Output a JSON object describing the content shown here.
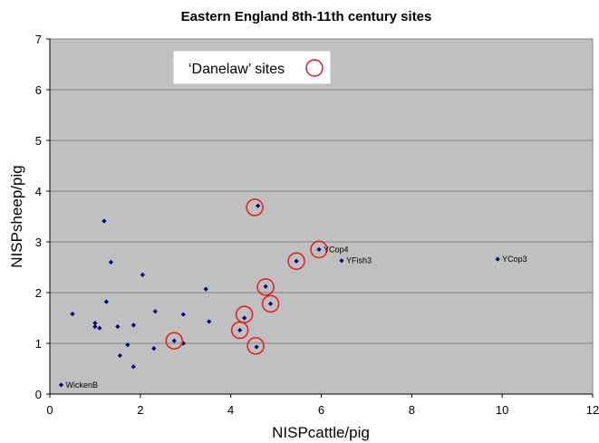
{
  "chart_data": {
    "type": "scatter",
    "title": "Eastern England 8th-11th century sites",
    "xlabel": "NISPcattle/pig",
    "ylabel": "NISPsheep/pig",
    "xlim": [
      0,
      12
    ],
    "ylim": [
      0,
      7
    ],
    "xticks": [
      "0",
      "2",
      "4",
      "6",
      "8",
      "10",
      "12"
    ],
    "yticks": [
      "0",
      "1",
      "2",
      "3",
      "4",
      "5",
      "6",
      "7"
    ],
    "grid": "horizontal",
    "legend": {
      "label": "‘Danelaw’ sites",
      "marker": "red circle",
      "placement": "top-left"
    },
    "colors": {
      "plot_bg": "#c0c0c0",
      "point": "#00007f",
      "highlight": "#e41a1c",
      "grid": "#7f7f7f"
    },
    "series": [
      {
        "points": [
          {
            "x": 0.25,
            "y": 0.18,
            "label": "WickenB"
          },
          {
            "x": 0.5,
            "y": 1.58
          },
          {
            "x": 1.0,
            "y": 1.33
          },
          {
            "x": 1.0,
            "y": 1.4
          },
          {
            "x": 1.1,
            "y": 1.3
          },
          {
            "x": 1.2,
            "y": 3.41
          },
          {
            "x": 1.25,
            "y": 1.82
          },
          {
            "x": 1.35,
            "y": 2.6
          },
          {
            "x": 1.5,
            "y": 1.33
          },
          {
            "x": 1.55,
            "y": 0.76
          },
          {
            "x": 1.72,
            "y": 0.97
          },
          {
            "x": 1.85,
            "y": 1.36
          },
          {
            "x": 1.85,
            "y": 0.54
          },
          {
            "x": 2.05,
            "y": 2.35
          },
          {
            "x": 2.3,
            "y": 0.9
          },
          {
            "x": 2.33,
            "y": 1.63
          },
          {
            "x": 2.75,
            "y": 1.05
          },
          {
            "x": 2.95,
            "y": 1.57
          },
          {
            "x": 2.95,
            "y": 1.0
          },
          {
            "x": 3.45,
            "y": 2.07
          },
          {
            "x": 3.52,
            "y": 1.43
          },
          {
            "x": 4.2,
            "y": 1.26
          },
          {
            "x": 4.3,
            "y": 1.5
          },
          {
            "x": 4.57,
            "y": 0.93
          },
          {
            "x": 4.6,
            "y": 3.71
          },
          {
            "x": 4.77,
            "y": 2.12
          },
          {
            "x": 4.88,
            "y": 1.78
          },
          {
            "x": 5.45,
            "y": 2.62
          },
          {
            "x": 5.95,
            "y": 2.85,
            "label": "YCop4"
          },
          {
            "x": 6.45,
            "y": 2.63,
            "label": "YFish3"
          },
          {
            "x": 9.9,
            "y": 2.66,
            "label": "YCop3"
          }
        ]
      }
    ],
    "danelaw_sites": [
      {
        "x": 2.75,
        "y": 1.05
      },
      {
        "x": 4.2,
        "y": 1.26
      },
      {
        "x": 4.3,
        "y": 1.57
      },
      {
        "x": 4.55,
        "y": 0.95
      },
      {
        "x": 4.53,
        "y": 3.68
      },
      {
        "x": 4.77,
        "y": 2.11
      },
      {
        "x": 4.88,
        "y": 1.78
      },
      {
        "x": 5.45,
        "y": 2.62
      },
      {
        "x": 5.95,
        "y": 2.85
      }
    ]
  }
}
